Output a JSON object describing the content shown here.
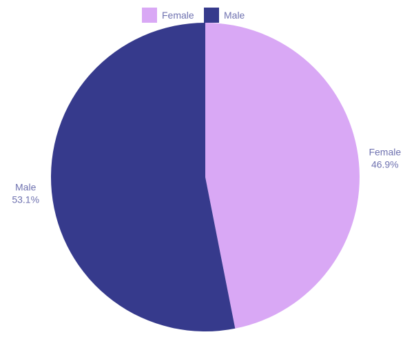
{
  "chart_data": {
    "type": "pie",
    "categories": [
      "Female",
      "Male"
    ],
    "values": [
      46.9,
      53.1
    ],
    "unit": "%",
    "colors": [
      "#d9a8f5",
      "#363a8c"
    ],
    "label_color": "#6f72b0",
    "legend": {
      "placement": "top-center",
      "entries": [
        "Female",
        "Male"
      ]
    },
    "data_labels": [
      {
        "name": "Female",
        "value": "46.9%"
      },
      {
        "name": "Male",
        "value": "53.1%"
      }
    ],
    "start": "12 o'clock",
    "direction": "clockwise"
  }
}
